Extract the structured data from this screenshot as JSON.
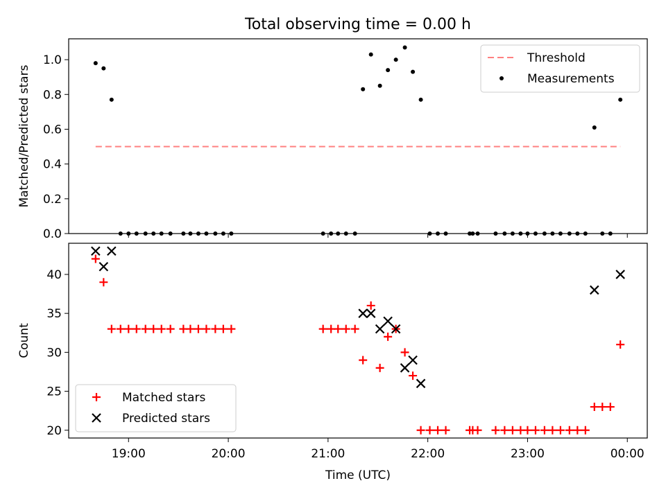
{
  "title": "Total observing time = 0.00 h",
  "x_tick_labels": [
    "19:00",
    "20:00",
    "21:00",
    "22:00",
    "23:00",
    "00:00"
  ],
  "x_ticks_hours": [
    19,
    20,
    21,
    22,
    23,
    24
  ],
  "chart_data": [
    {
      "type": "scatter",
      "title": "Total observing time = 0.00 h",
      "xlabel": "",
      "ylabel": "Matched/Predicted stars",
      "xlim": [
        18.4,
        24.2
      ],
      "ylim": [
        0,
        1.12
      ],
      "yticks": [
        0.0,
        0.2,
        0.4,
        0.6,
        0.8,
        1.0
      ],
      "ytick_labels": [
        "0.0",
        "0.2",
        "0.4",
        "0.6",
        "0.8",
        "1.0"
      ],
      "legend_position": "top-right",
      "grid": false,
      "threshold": {
        "name": "Threshold",
        "y": 0.5,
        "x": [
          18.67,
          23.93
        ],
        "color": "#ff8080"
      },
      "series": [
        {
          "name": "Measurements",
          "color": "#000000",
          "x": [
            18.67,
            18.75,
            18.83,
            18.92,
            19.0,
            19.08,
            19.17,
            19.25,
            19.33,
            19.42,
            19.55,
            19.62,
            19.7,
            19.78,
            19.87,
            19.95,
            20.03,
            20.95,
            21.03,
            21.1,
            21.18,
            21.27,
            21.35,
            21.43,
            21.52,
            21.6,
            21.68,
            21.77,
            21.85,
            21.93,
            22.02,
            22.1,
            22.18,
            22.42,
            22.45,
            22.5,
            22.68,
            22.77,
            22.85,
            22.93,
            23.0,
            23.08,
            23.17,
            23.25,
            23.33,
            23.42,
            23.5,
            23.58,
            23.67,
            23.75,
            23.83,
            23.93
          ],
          "y": [
            0.98,
            0.95,
            0.77,
            0,
            0,
            0,
            0,
            0,
            0,
            0,
            0,
            0,
            0,
            0,
            0,
            0,
            0,
            0,
            0,
            0,
            0,
            0,
            0.83,
            1.03,
            0.85,
            0.94,
            1.0,
            1.07,
            0.93,
            0.77,
            0,
            0,
            0,
            0,
            0,
            0,
            0,
            0,
            0,
            0,
            0,
            0,
            0,
            0,
            0,
            0,
            0,
            0,
            0.61,
            0,
            0,
            0.77
          ]
        }
      ]
    },
    {
      "type": "scatter",
      "xlabel": "Time (UTC)",
      "ylabel": "Count",
      "xlim": [
        18.4,
        24.2
      ],
      "ylim": [
        19,
        44
      ],
      "yticks": [
        20,
        25,
        30,
        35,
        40
      ],
      "ytick_labels": [
        "20",
        "25",
        "30",
        "35",
        "40"
      ],
      "legend_position": "bottom-left",
      "grid": false,
      "series": [
        {
          "name": "Matched stars",
          "marker": "plus",
          "color": "#ff0000",
          "x": [
            18.67,
            18.75,
            18.83,
            18.92,
            19.0,
            19.08,
            19.17,
            19.25,
            19.33,
            19.42,
            19.55,
            19.62,
            19.7,
            19.78,
            19.87,
            19.95,
            20.03,
            20.95,
            21.03,
            21.1,
            21.18,
            21.27,
            21.35,
            21.43,
            21.52,
            21.6,
            21.68,
            21.77,
            21.85,
            21.93,
            22.02,
            22.1,
            22.18,
            22.42,
            22.45,
            22.5,
            22.68,
            22.77,
            22.85,
            22.93,
            23.0,
            23.08,
            23.17,
            23.25,
            23.33,
            23.42,
            23.5,
            23.58,
            23.67,
            23.75,
            23.83,
            23.93
          ],
          "y": [
            42,
            39,
            33,
            33,
            33,
            33,
            33,
            33,
            33,
            33,
            33,
            33,
            33,
            33,
            33,
            33,
            33,
            33,
            33,
            33,
            33,
            33,
            29,
            36,
            28,
            32,
            33,
            30,
            27,
            20,
            20,
            20,
            20,
            20,
            20,
            20,
            20,
            20,
            20,
            20,
            20,
            20,
            20,
            20,
            20,
            20,
            20,
            20,
            23,
            23,
            23,
            31
          ]
        },
        {
          "name": "Predicted stars",
          "marker": "x",
          "color": "#000000",
          "x": [
            18.67,
            18.75,
            18.83,
            21.35,
            21.43,
            21.52,
            21.6,
            21.68,
            21.77,
            21.85,
            21.93,
            23.67,
            23.93
          ],
          "y": [
            43,
            41,
            43,
            35,
            35,
            33,
            34,
            33,
            28,
            29,
            26,
            38,
            40
          ]
        }
      ]
    }
  ]
}
